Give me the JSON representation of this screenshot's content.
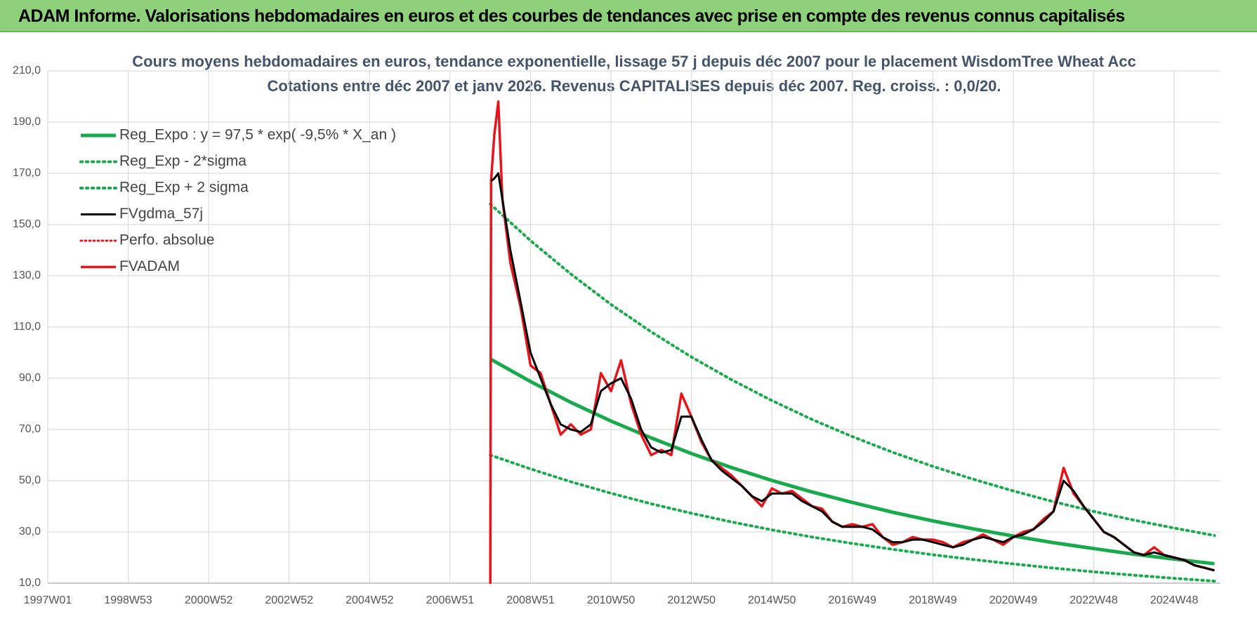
{
  "header": {
    "title": "ADAM Informe. Valorisations hebdomadaires en euros et des courbes de tendances avec prise en compte des revenus connus capitalisés"
  },
  "chart_data": {
    "type": "line",
    "title": "Cours moyens hebdomadaires en euros, tendance exponentielle, lissage 57 j depuis déc 2007 pour le placement WisdomTree Wheat Acc",
    "subtitle": "Cotations entre déc 2007 et janv 2026. Revenus CAPITALISES depuis déc 2007. Reg. croiss. : 0,0/20.",
    "x": [
      2008.0,
      2008.02,
      2008.1,
      2008.2,
      2008.3,
      2008.5,
      2008.75,
      2009.0,
      2009.25,
      2009.5,
      2009.75,
      2010.0,
      2010.25,
      2010.5,
      2010.75,
      2011.0,
      2011.25,
      2011.5,
      2011.75,
      2012.0,
      2012.25,
      2012.5,
      2012.75,
      2013.0,
      2013.25,
      2013.5,
      2013.75,
      2014.0,
      2014.25,
      2014.5,
      2014.75,
      2015.0,
      2015.25,
      2015.5,
      2015.75,
      2016.0,
      2016.25,
      2016.5,
      2016.75,
      2017.0,
      2017.25,
      2017.5,
      2017.75,
      2018.0,
      2018.25,
      2018.5,
      2018.75,
      2019.0,
      2019.25,
      2019.5,
      2019.75,
      2020.0,
      2020.25,
      2020.5,
      2020.75,
      2021.0,
      2021.25,
      2021.5,
      2021.75,
      2022.0,
      2022.25,
      2022.5,
      2022.75,
      2023.0,
      2023.25,
      2023.5,
      2023.75,
      2024.0,
      2024.25,
      2024.5,
      2024.75,
      2025.0,
      2025.25,
      2025.5,
      2025.75,
      2026.0
    ],
    "series": [
      {
        "name": "Reg_Expo : y = 97,5 * exp( -9,5% *  X_an )",
        "color": "#1aaa4e",
        "dash": "solid",
        "width": 5,
        "x": [
          2008,
          2009,
          2010,
          2011,
          2012,
          2013,
          2014,
          2015,
          2016,
          2017,
          2018,
          2019,
          2020,
          2021,
          2022,
          2023,
          2024,
          2025,
          2026
        ],
        "values": [
          97.5,
          88.7,
          80.6,
          73.3,
          66.7,
          60.6,
          55.1,
          50.1,
          45.6,
          41.5,
          37.7,
          34.3,
          31.2,
          28.4,
          25.8,
          23.5,
          21.3,
          19.4,
          17.6
        ]
      },
      {
        "name": "Reg_Exp - 2*sigma",
        "color": "#1aaa4e",
        "dash": "dotted",
        "width": 4,
        "x": [
          2008,
          2009,
          2010,
          2011,
          2012,
          2013,
          2014,
          2015,
          2016,
          2017,
          2018,
          2019,
          2020,
          2021,
          2022,
          2023,
          2024,
          2025,
          2026
        ],
        "values": [
          60,
          54.6,
          49.6,
          45.1,
          41.0,
          37.3,
          33.9,
          30.8,
          28.0,
          25.5,
          23.2,
          21.1,
          19.2,
          17.5,
          15.9,
          14.4,
          13.1,
          11.9,
          10.8
        ]
      },
      {
        "name": "Reg_Exp + 2 sigma",
        "color": "#1aaa4e",
        "dash": "dotted",
        "width": 4,
        "x": [
          2008,
          2009,
          2010,
          2011,
          2012,
          2013,
          2014,
          2015,
          2016,
          2017,
          2018,
          2019,
          2020,
          2021,
          2022,
          2023,
          2024,
          2025,
          2026
        ],
        "values": [
          158,
          143.7,
          130.7,
          118.8,
          108.1,
          98.3,
          89.4,
          81.3,
          73.9,
          67.2,
          61.1,
          55.6,
          50.6,
          46.0,
          41.8,
          38.0,
          34.6,
          31.5,
          28.6
        ]
      },
      {
        "name": "FVgdma_57j",
        "color": "#000000",
        "dash": "solid",
        "width": 3,
        "values": [
          null,
          167,
          168,
          170,
          160,
          140,
          120,
          100,
          90,
          80,
          72,
          70,
          69,
          72,
          85,
          88,
          90,
          82,
          70,
          63,
          61,
          62,
          75,
          75,
          66,
          58,
          54,
          51,
          48,
          44,
          42,
          45,
          45,
          45,
          42,
          40,
          38,
          34,
          32,
          32,
          32,
          31,
          28,
          26,
          26,
          27,
          27,
          26,
          25,
          24,
          25,
          27,
          28,
          27,
          26,
          28,
          29,
          31,
          34,
          38,
          50,
          46,
          40,
          35,
          30,
          28,
          25,
          22,
          21,
          22,
          21,
          20,
          19,
          17,
          16,
          15
        ]
      },
      {
        "name": "Perfo. absolue",
        "color": "#e8141b",
        "dash": "dotted",
        "width": 3,
        "values": [
          10,
          167,
          185,
          198,
          160,
          135,
          118,
          95,
          92,
          80,
          68,
          72,
          68,
          70,
          92,
          85,
          97,
          80,
          68,
          60,
          62,
          60,
          84,
          75,
          65,
          58,
          55,
          52,
          48,
          44,
          40,
          47,
          45,
          46,
          43,
          40,
          39,
          34,
          32,
          33,
          32,
          33,
          28,
          25,
          26,
          28,
          27,
          27,
          26,
          24,
          26,
          27,
          29,
          27,
          25,
          28,
          30,
          31,
          35,
          38,
          55,
          45,
          40,
          35,
          30,
          28,
          25,
          22,
          21,
          24,
          21,
          20,
          19,
          17,
          16,
          15
        ]
      },
      {
        "name": "FVADAM",
        "color": "#e8141b",
        "dash": "solid",
        "width": 3.5,
        "values": [
          10,
          167,
          185,
          198,
          160,
          135,
          118,
          95,
          92,
          80,
          68,
          72,
          68,
          70,
          92,
          85,
          97,
          80,
          68,
          60,
          62,
          60,
          84,
          75,
          65,
          58,
          55,
          52,
          48,
          44,
          40,
          47,
          45,
          46,
          43,
          40,
          39,
          34,
          32,
          33,
          32,
          33,
          28,
          25,
          26,
          28,
          27,
          27,
          26,
          24,
          26,
          27,
          29,
          27,
          25,
          28,
          30,
          31,
          35,
          38,
          55,
          45,
          40,
          35,
          30,
          28,
          25,
          22,
          21,
          24,
          21,
          20,
          19,
          17,
          16,
          15
        ]
      }
    ],
    "xlim": [
      1997.0,
      2026.15
    ],
    "xticks": [
      {
        "value": 1997.0,
        "label": "1997W01"
      },
      {
        "value": 1999.0,
        "label": "1998W53"
      },
      {
        "value": 2001.0,
        "label": "2000W52"
      },
      {
        "value": 2003.0,
        "label": "2002W52"
      },
      {
        "value": 2005.0,
        "label": "2004W52"
      },
      {
        "value": 2007.0,
        "label": "2006W51"
      },
      {
        "value": 2009.0,
        "label": "2008W51"
      },
      {
        "value": 2011.0,
        "label": "2010W50"
      },
      {
        "value": 2013.0,
        "label": "2012W50"
      },
      {
        "value": 2015.0,
        "label": "2014W50"
      },
      {
        "value": 2017.0,
        "label": "2016W49"
      },
      {
        "value": 2019.0,
        "label": "2018W49"
      },
      {
        "value": 2021.0,
        "label": "2020W49"
      },
      {
        "value": 2023.0,
        "label": "2022W48"
      },
      {
        "value": 2025.0,
        "label": "2024W48"
      }
    ],
    "ylim": [
      10,
      210
    ],
    "yticks": [
      {
        "value": 10,
        "label": "10,0"
      },
      {
        "value": 30,
        "label": "30,0"
      },
      {
        "value": 50,
        "label": "50,0"
      },
      {
        "value": 70,
        "label": "70,0"
      },
      {
        "value": 90,
        "label": "90,0"
      },
      {
        "value": 110,
        "label": "110,0"
      },
      {
        "value": 130,
        "label": "130,0"
      },
      {
        "value": 150,
        "label": "150,0"
      },
      {
        "value": 170,
        "label": "170,0"
      },
      {
        "value": 190,
        "label": "190,0"
      },
      {
        "value": 210,
        "label": "210,0"
      }
    ],
    "grid": true,
    "legend": "upper left"
  }
}
